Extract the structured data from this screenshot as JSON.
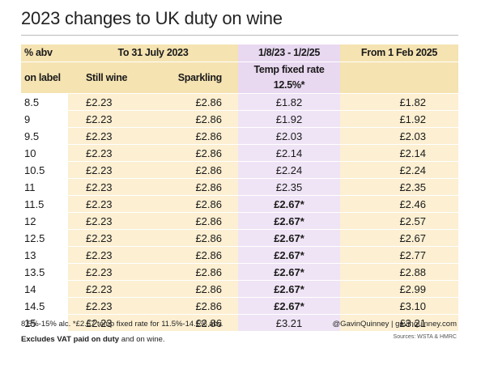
{
  "title": "2023 changes to UK duty on wine",
  "header": {
    "row1": {
      "abv": "% abv",
      "group_to_july": "To 31 July 2023",
      "group_temp": "1/8/23 - 1/2/25",
      "group_feb": "From 1 Feb 2025"
    },
    "row2": {
      "abv": "on label",
      "still": "Still wine",
      "sparkling": "Sparkling",
      "temp": "Temp fixed rate 12.5%*"
    }
  },
  "rows": [
    {
      "abv": "8.5",
      "still": "£2.23",
      "sparkling": "£2.86",
      "temp": "£1.82",
      "feb": "£1.82",
      "temp_bold": false
    },
    {
      "abv": "9",
      "still": "£2.23",
      "sparkling": "£2.86",
      "temp": "£1.92",
      "feb": "£1.92",
      "temp_bold": false
    },
    {
      "abv": "9.5",
      "still": "£2.23",
      "sparkling": "£2.86",
      "temp": "£2.03",
      "feb": "£2.03",
      "temp_bold": false
    },
    {
      "abv": "10",
      "still": "£2.23",
      "sparkling": "£2.86",
      "temp": "£2.14",
      "feb": "£2.14",
      "temp_bold": false
    },
    {
      "abv": "10.5",
      "still": "£2.23",
      "sparkling": "£2.86",
      "temp": "£2.24",
      "feb": "£2.24",
      "temp_bold": false
    },
    {
      "abv": "11",
      "still": "£2.23",
      "sparkling": "£2.86",
      "temp": "£2.35",
      "feb": "£2.35",
      "temp_bold": false
    },
    {
      "abv": "11.5",
      "still": "£2.23",
      "sparkling": "£2.86",
      "temp": "£2.67*",
      "feb": "£2.46",
      "temp_bold": true
    },
    {
      "abv": "12",
      "still": "£2.23",
      "sparkling": "£2.86",
      "temp": "£2.67*",
      "feb": "£2.57",
      "temp_bold": true
    },
    {
      "abv": "12.5",
      "still": "£2.23",
      "sparkling": "£2.86",
      "temp": "£2.67*",
      "feb": "£2.67",
      "temp_bold": true
    },
    {
      "abv": "13",
      "still": "£2.23",
      "sparkling": "£2.86",
      "temp": "£2.67*",
      "feb": "£2.77",
      "temp_bold": true
    },
    {
      "abv": "13.5",
      "still": "£2.23",
      "sparkling": "£2.86",
      "temp": "£2.67*",
      "feb": "£2.88",
      "temp_bold": true
    },
    {
      "abv": "14",
      "still": "£2.23",
      "sparkling": "£2.86",
      "temp": "£2.67*",
      "feb": "£2.99",
      "temp_bold": true
    },
    {
      "abv": "14.5",
      "still": "£2.23",
      "sparkling": "£2.86",
      "temp": "£2.67*",
      "feb": "£3.10",
      "temp_bold": true
    },
    {
      "abv": "15",
      "still": "£2.23",
      "sparkling": "£2.86",
      "temp": "£3.21",
      "feb": "£3.21",
      "temp_bold": false
    }
  ],
  "footer": {
    "note": "8.5%-15% alc. *£2.67 temp fixed rate for 11.5%-14.5% abv.",
    "vat_bold": "Excludes VAT paid on duty",
    "vat_rest": " and on wine.",
    "credit": "@GavinQuinney  |  gavinquinney.com",
    "sources": "Sources: WSTA & HMRC"
  }
}
